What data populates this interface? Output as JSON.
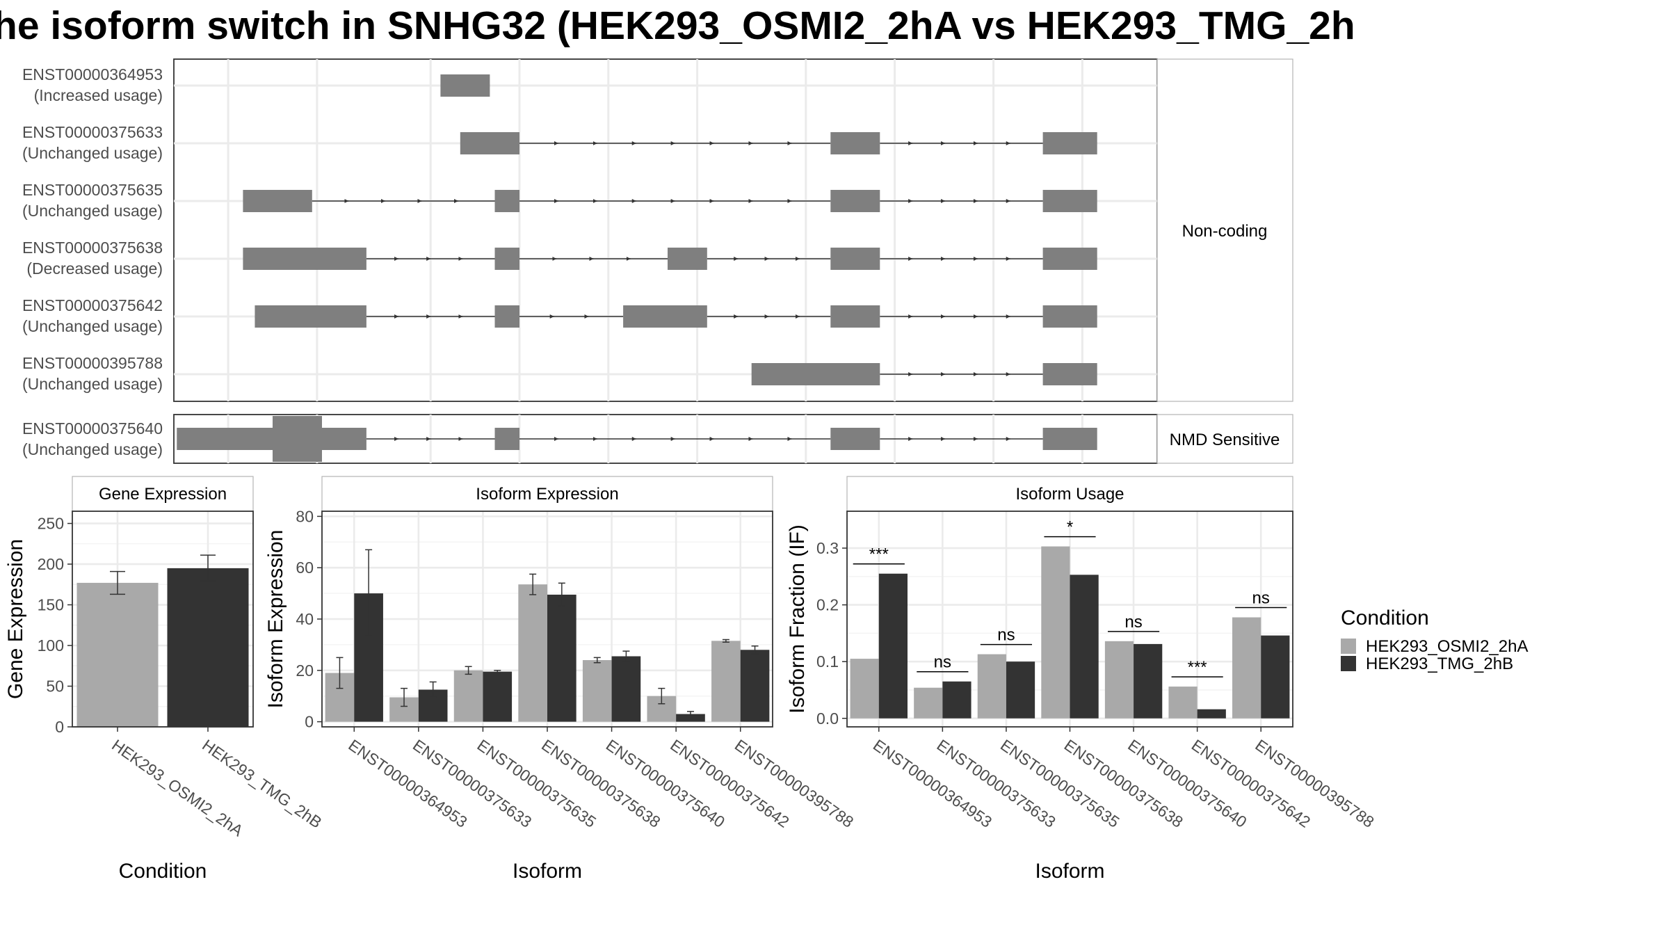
{
  "title": "he isoform switch in SNHG32 (HEK293_OSMI2_2hA vs HEK293_TMG_2h",
  "colors": {
    "cond1": "#a9a9a9",
    "cond2": "#333333",
    "exon": "#7f7f7f",
    "grid": "#ebebeb",
    "strip": "#ffffff"
  },
  "chart_data": [
    {
      "type": "gene-structure",
      "facets": [
        {
          "label": "Non-coding",
          "transcripts": [
            {
              "id": "ENST00000364953",
              "usage": "(Increased usage)"
            },
            {
              "id": "ENST00000375633",
              "usage": "(Unchanged usage)"
            },
            {
              "id": "ENST00000375635",
              "usage": "(Unchanged usage)"
            },
            {
              "id": "ENST00000375638",
              "usage": "(Decreased usage)"
            },
            {
              "id": "ENST00000375642",
              "usage": "(Unchanged usage)"
            },
            {
              "id": "ENST00000395788",
              "usage": "(Unchanged usage)"
            }
          ]
        },
        {
          "label": "NMD Sensitive",
          "transcripts": [
            {
              "id": "ENST00000375640",
              "usage": "(Unchanged usage)"
            }
          ]
        }
      ]
    },
    {
      "type": "bar",
      "title": "Gene Expression",
      "xlabel": "Condition",
      "ylabel": "Gene Expression",
      "ylim": [
        0,
        265
      ],
      "yticks": [
        0,
        50,
        100,
        150,
        200,
        250
      ],
      "categories": [
        "HEK293_OSMI2_2hA",
        "HEK293_TMG_2hB"
      ],
      "values": [
        177,
        195
      ],
      "errors": [
        [
          163,
          191
        ],
        [
          179,
          211
        ]
      ]
    },
    {
      "type": "bar",
      "title": "Isoform Expression",
      "xlabel": "Isoform",
      "ylabel": "Isoform Expression",
      "ylim": [
        -2,
        82
      ],
      "yticks": [
        0,
        20,
        40,
        60,
        80
      ],
      "categories": [
        "ENST00000364953",
        "ENST00000375633",
        "ENST00000375635",
        "ENST00000375638",
        "ENST00000375640",
        "ENST00000375642",
        "ENST00000395788"
      ],
      "series": [
        {
          "name": "HEK293_OSMI2_2hA",
          "values": [
            19,
            9.5,
            20,
            53.5,
            24,
            10,
            31.5
          ],
          "errors": [
            [
              13,
              25
            ],
            [
              6,
              13
            ],
            [
              18.5,
              21.5
            ],
            [
              49.5,
              57.5
            ],
            [
              23,
              25
            ],
            [
              7,
              13
            ],
            [
              31,
              32
            ]
          ]
        },
        {
          "name": "HEK293_TMG_2hB",
          "values": [
            50,
            12.5,
            19.5,
            49.5,
            25.5,
            3,
            28
          ],
          "errors": [
            [
              33.5,
              67
            ],
            [
              9.5,
              15.5
            ],
            [
              19,
              20
            ],
            [
              45,
              54
            ],
            [
              23.5,
              27.5
            ],
            [
              2,
              4
            ],
            [
              26.5,
              29.5
            ]
          ]
        }
      ]
    },
    {
      "type": "bar",
      "title": "Isoform Usage",
      "xlabel": "Isoform",
      "ylabel": "Isoform Fraction (IF)",
      "ylim": [
        -0.015,
        0.365
      ],
      "yticks": [
        0.0,
        0.1,
        0.2,
        0.3
      ],
      "ytick_labels": [
        "0.0",
        "0.1",
        "0.2",
        "0.3"
      ],
      "categories": [
        "ENST00000364953",
        "ENST00000375633",
        "ENST00000375635",
        "ENST00000375638",
        "ENST00000375640",
        "ENST00000375642",
        "ENST00000395788"
      ],
      "series": [
        {
          "name": "HEK293_OSMI2_2hA",
          "values": [
            0.105,
            0.054,
            0.113,
            0.303,
            0.136,
            0.056,
            0.178
          ]
        },
        {
          "name": "HEK293_TMG_2hB",
          "values": [
            0.255,
            0.065,
            0.1,
            0.253,
            0.131,
            0.016,
            0.146
          ]
        }
      ],
      "significance": [
        "***",
        "ns",
        "ns",
        "*",
        "ns",
        "***",
        "ns"
      ]
    }
  ],
  "legend": {
    "title": "Condition",
    "entries": [
      "HEK293_OSMI2_2hA",
      "HEK293_TMG_2hB"
    ]
  }
}
